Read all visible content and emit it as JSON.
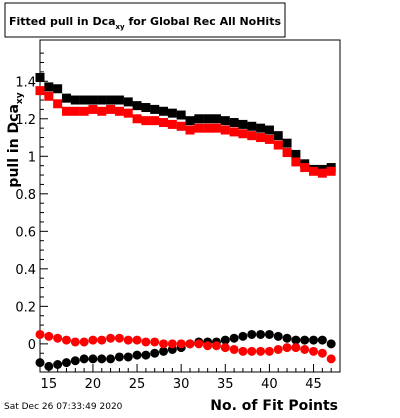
{
  "chart_data": {
    "type": "scatter",
    "title": {
      "main": "Fitted pull in Dca",
      "sub": "xy",
      "rest": " for Global Rec All NoHits"
    },
    "xlabel": "No. of Fit Points",
    "ylabel": {
      "main": "pull in Dca",
      "sub": "xy"
    },
    "timestamp": "Sat Dec 26 07:33:49 2020",
    "xlim": [
      14,
      48
    ],
    "ylim": [
      -0.15,
      1.62
    ],
    "x_ticks": [
      "15",
      "20",
      "25",
      "30",
      "35",
      "40",
      "45"
    ],
    "y_ticks": [
      "0",
      "0.2",
      "0.4",
      "0.6",
      "0.8",
      "1",
      "1.2",
      "1.4"
    ],
    "colors": {
      "black": "#000000",
      "red": "#ff0000",
      "axis": "#000000",
      "background": "#ffffff"
    },
    "series": [
      {
        "color": "#000000",
        "marker": "square",
        "x": [
          14,
          15,
          16,
          17,
          18,
          19,
          20,
          21,
          22,
          23,
          24,
          25,
          26,
          27,
          28,
          29,
          30,
          31,
          32,
          33,
          34,
          35,
          36,
          37,
          38,
          39,
          40,
          41,
          42,
          43,
          44,
          45,
          46,
          47
        ],
        "values": [
          1.42,
          1.37,
          1.36,
          1.31,
          1.3,
          1.3,
          1.3,
          1.3,
          1.3,
          1.3,
          1.29,
          1.27,
          1.26,
          1.25,
          1.24,
          1.23,
          1.22,
          1.19,
          1.2,
          1.2,
          1.2,
          1.19,
          1.18,
          1.17,
          1.16,
          1.15,
          1.14,
          1.11,
          1.07,
          1.01,
          0.96,
          0.93,
          0.93,
          0.94
        ]
      },
      {
        "color": "#ff0000",
        "marker": "square",
        "x": [
          14,
          15,
          16,
          17,
          18,
          19,
          20,
          21,
          22,
          23,
          24,
          25,
          26,
          27,
          28,
          29,
          30,
          31,
          32,
          33,
          34,
          35,
          36,
          37,
          38,
          39,
          40,
          41,
          42,
          43,
          44,
          45,
          46,
          47
        ],
        "values": [
          1.35,
          1.32,
          1.28,
          1.24,
          1.24,
          1.24,
          1.25,
          1.24,
          1.25,
          1.24,
          1.23,
          1.2,
          1.19,
          1.19,
          1.18,
          1.17,
          1.16,
          1.14,
          1.15,
          1.15,
          1.15,
          1.14,
          1.13,
          1.12,
          1.11,
          1.1,
          1.09,
          1.06,
          1.02,
          0.97,
          0.94,
          0.92,
          0.91,
          0.92
        ]
      },
      {
        "color": "#000000",
        "marker": "circle",
        "x": [
          14,
          15,
          16,
          17,
          18,
          19,
          20,
          21,
          22,
          23,
          24,
          25,
          26,
          27,
          28,
          29,
          30,
          31,
          32,
          33,
          34,
          35,
          36,
          37,
          38,
          39,
          40,
          41,
          42,
          43,
          44,
          45,
          46,
          47
        ],
        "values": [
          -0.1,
          -0.12,
          -0.11,
          -0.1,
          -0.09,
          -0.08,
          -0.08,
          -0.08,
          -0.08,
          -0.07,
          -0.07,
          -0.06,
          -0.06,
          -0.05,
          -0.04,
          -0.03,
          -0.02,
          0.0,
          0.01,
          0.01,
          0.01,
          0.02,
          0.03,
          0.04,
          0.05,
          0.05,
          0.05,
          0.04,
          0.03,
          0.02,
          0.02,
          0.02,
          0.02,
          0.0
        ]
      },
      {
        "color": "#ff0000",
        "marker": "circle",
        "x": [
          14,
          15,
          16,
          17,
          18,
          19,
          20,
          21,
          22,
          23,
          24,
          25,
          26,
          27,
          28,
          29,
          30,
          31,
          32,
          33,
          34,
          35,
          36,
          37,
          38,
          39,
          40,
          41,
          42,
          43,
          44,
          45,
          46,
          47
        ],
        "values": [
          0.05,
          0.04,
          0.03,
          0.02,
          0.01,
          0.01,
          0.02,
          0.02,
          0.03,
          0.03,
          0.02,
          0.02,
          0.01,
          0.01,
          0.0,
          0.0,
          0.0,
          0.0,
          0.0,
          -0.01,
          -0.01,
          -0.02,
          -0.03,
          -0.04,
          -0.04,
          -0.04,
          -0.04,
          -0.03,
          -0.02,
          -0.02,
          -0.03,
          -0.04,
          -0.05,
          -0.08
        ]
      }
    ]
  }
}
